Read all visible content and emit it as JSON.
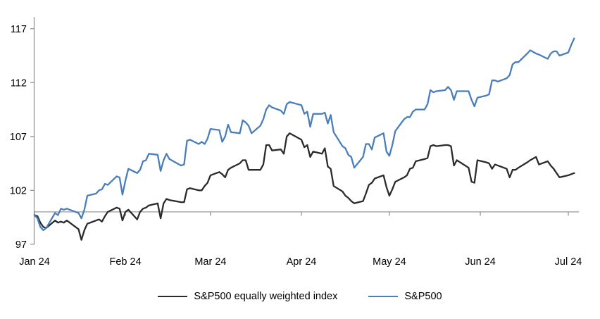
{
  "chart_data": {
    "type": "line",
    "title": "",
    "x_axis_labels": [
      {
        "label": "Jan 24",
        "date": "2024-01-01"
      },
      {
        "label": "Feb 24",
        "date": "2024-02-01"
      },
      {
        "label": "Mar 24",
        "date": "2024-03-01"
      },
      {
        "label": "Apr 24",
        "date": "2024-04-01"
      },
      {
        "label": "May 24",
        "date": "2024-05-01"
      },
      {
        "label": "Jun 24",
        "date": "2024-06-01"
      },
      {
        "label": "Jul 24",
        "date": "2024-07-01"
      }
    ],
    "y_ticks": [
      117,
      112,
      107,
      102,
      97
    ],
    "ylim": [
      97,
      117.8
    ],
    "baseline_value": 100,
    "grid": false,
    "legend_position": "bottom",
    "axis_color": "#8c8c8c",
    "baseline_color": "#9a9a9a",
    "series": [
      {
        "name": "S&P500 equally weighted index",
        "color": "#2b2b2b",
        "points": [
          [
            "2024-01-01",
            99.7
          ],
          [
            "2024-01-02",
            99.6
          ],
          [
            "2024-01-03",
            99.0
          ],
          [
            "2024-01-04",
            98.6
          ],
          [
            "2024-01-05",
            98.5
          ],
          [
            "2024-01-08",
            99.2
          ],
          [
            "2024-01-09",
            99.0
          ],
          [
            "2024-01-10",
            99.1
          ],
          [
            "2024-01-11",
            99.0
          ],
          [
            "2024-01-12",
            99.2
          ],
          [
            "2024-01-16",
            98.4
          ],
          [
            "2024-01-17",
            97.4
          ],
          [
            "2024-01-18",
            98.3
          ],
          [
            "2024-01-19",
            98.9
          ],
          [
            "2024-01-22",
            99.2
          ],
          [
            "2024-01-23",
            99.3
          ],
          [
            "2024-01-24",
            99.1
          ],
          [
            "2024-01-25",
            99.6
          ],
          [
            "2024-01-26",
            100.0
          ],
          [
            "2024-01-29",
            100.4
          ],
          [
            "2024-01-30",
            100.3
          ],
          [
            "2024-01-31",
            99.2
          ],
          [
            "2024-02-01",
            100.0
          ],
          [
            "2024-02-02",
            100.2
          ],
          [
            "2024-02-05",
            99.3
          ],
          [
            "2024-02-06",
            100.0
          ],
          [
            "2024-02-07",
            100.3
          ],
          [
            "2024-02-08",
            100.4
          ],
          [
            "2024-02-09",
            100.6
          ],
          [
            "2024-02-12",
            100.8
          ],
          [
            "2024-02-13",
            99.4
          ],
          [
            "2024-02-14",
            100.8
          ],
          [
            "2024-02-15",
            101.2
          ],
          [
            "2024-02-16",
            101.1
          ],
          [
            "2024-02-20",
            100.9
          ],
          [
            "2024-02-21",
            100.9
          ],
          [
            "2024-02-22",
            102.1
          ],
          [
            "2024-02-23",
            102.2
          ],
          [
            "2024-02-26",
            102.0
          ],
          [
            "2024-02-27",
            102.0
          ],
          [
            "2024-02-28",
            102.4
          ],
          [
            "2024-02-29",
            102.7
          ],
          [
            "2024-03-01",
            103.4
          ],
          [
            "2024-03-04",
            103.7
          ],
          [
            "2024-03-05",
            103.5
          ],
          [
            "2024-03-06",
            103.2
          ],
          [
            "2024-03-07",
            103.9
          ],
          [
            "2024-03-08",
            104.1
          ],
          [
            "2024-03-11",
            104.5
          ],
          [
            "2024-03-12",
            104.8
          ],
          [
            "2024-03-13",
            104.8
          ],
          [
            "2024-03-14",
            103.9
          ],
          [
            "2024-03-15",
            103.9
          ],
          [
            "2024-03-18",
            103.9
          ],
          [
            "2024-03-19",
            104.4
          ],
          [
            "2024-03-20",
            106.2
          ],
          [
            "2024-03-21",
            106.2
          ],
          [
            "2024-03-22",
            105.7
          ],
          [
            "2024-03-25",
            105.8
          ],
          [
            "2024-03-26",
            105.4
          ],
          [
            "2024-03-27",
            107.0
          ],
          [
            "2024-03-28",
            107.3
          ],
          [
            "2024-04-01",
            106.7
          ],
          [
            "2024-04-02",
            106.0
          ],
          [
            "2024-04-03",
            106.2
          ],
          [
            "2024-04-04",
            105.1
          ],
          [
            "2024-04-05",
            105.6
          ],
          [
            "2024-04-08",
            105.4
          ],
          [
            "2024-04-09",
            105.9
          ],
          [
            "2024-04-10",
            104.2
          ],
          [
            "2024-04-11",
            104.0
          ],
          [
            "2024-04-12",
            102.4
          ],
          [
            "2024-04-15",
            101.9
          ],
          [
            "2024-04-16",
            101.5
          ],
          [
            "2024-04-17",
            101.3
          ],
          [
            "2024-04-18",
            101.0
          ],
          [
            "2024-04-19",
            100.8
          ],
          [
            "2024-04-22",
            101.0
          ],
          [
            "2024-04-23",
            101.7
          ],
          [
            "2024-04-24",
            102.5
          ],
          [
            "2024-04-25",
            102.7
          ],
          [
            "2024-04-26",
            103.1
          ],
          [
            "2024-04-29",
            103.4
          ],
          [
            "2024-04-30",
            102.3
          ],
          [
            "2024-05-01",
            101.5
          ],
          [
            "2024-05-02",
            102.1
          ],
          [
            "2024-05-03",
            102.8
          ],
          [
            "2024-05-06",
            103.2
          ],
          [
            "2024-05-07",
            103.4
          ],
          [
            "2024-05-08",
            104.0
          ],
          [
            "2024-05-09",
            104.1
          ],
          [
            "2024-05-10",
            104.7
          ],
          [
            "2024-05-13",
            104.9
          ],
          [
            "2024-05-14",
            105.0
          ],
          [
            "2024-05-15",
            106.1
          ],
          [
            "2024-05-16",
            106.2
          ],
          [
            "2024-05-17",
            106.1
          ],
          [
            "2024-05-20",
            106.2
          ],
          [
            "2024-05-21",
            106.2
          ],
          [
            "2024-05-22",
            106.1
          ],
          [
            "2024-05-23",
            104.3
          ],
          [
            "2024-05-24",
            104.8
          ],
          [
            "2024-05-28",
            104.1
          ],
          [
            "2024-05-29",
            102.8
          ],
          [
            "2024-05-30",
            102.7
          ],
          [
            "2024-05-31",
            104.8
          ],
          [
            "2024-06-03",
            104.6
          ],
          [
            "2024-06-04",
            104.5
          ],
          [
            "2024-06-05",
            104.0
          ],
          [
            "2024-06-06",
            104.4
          ],
          [
            "2024-06-07",
            104.3
          ],
          [
            "2024-06-10",
            104.0
          ],
          [
            "2024-06-11",
            103.2
          ],
          [
            "2024-06-12",
            103.9
          ],
          [
            "2024-06-13",
            103.9
          ],
          [
            "2024-06-14",
            104.1
          ],
          [
            "2024-06-17",
            104.6
          ],
          [
            "2024-06-18",
            104.8
          ],
          [
            "2024-06-20",
            105.1
          ],
          [
            "2024-06-21",
            104.4
          ],
          [
            "2024-06-24",
            104.7
          ],
          [
            "2024-06-25",
            104.3
          ],
          [
            "2024-06-26",
            104.0
          ],
          [
            "2024-06-27",
            103.6
          ],
          [
            "2024-06-28",
            103.2
          ],
          [
            "2024-07-01",
            103.4
          ],
          [
            "2024-07-02",
            103.5
          ],
          [
            "2024-07-03",
            103.6
          ]
        ]
      },
      {
        "name": "S&P500",
        "color": "#4a7ebb",
        "points": [
          [
            "2024-01-01",
            99.7
          ],
          [
            "2024-01-02",
            99.4
          ],
          [
            "2024-01-03",
            98.6
          ],
          [
            "2024-01-04",
            98.3
          ],
          [
            "2024-01-05",
            98.5
          ],
          [
            "2024-01-08",
            99.9
          ],
          [
            "2024-01-09",
            99.7
          ],
          [
            "2024-01-10",
            100.3
          ],
          [
            "2024-01-11",
            100.2
          ],
          [
            "2024-01-12",
            100.3
          ],
          [
            "2024-01-16",
            99.9
          ],
          [
            "2024-01-17",
            99.4
          ],
          [
            "2024-01-18",
            100.2
          ],
          [
            "2024-01-19",
            101.5
          ],
          [
            "2024-01-22",
            101.7
          ],
          [
            "2024-01-23",
            102.0
          ],
          [
            "2024-01-24",
            102.1
          ],
          [
            "2024-01-25",
            102.6
          ],
          [
            "2024-01-26",
            102.5
          ],
          [
            "2024-01-29",
            103.3
          ],
          [
            "2024-01-30",
            103.2
          ],
          [
            "2024-01-31",
            101.6
          ],
          [
            "2024-02-01",
            102.9
          ],
          [
            "2024-02-02",
            104.0
          ],
          [
            "2024-02-05",
            103.6
          ],
          [
            "2024-02-06",
            103.9
          ],
          [
            "2024-02-07",
            104.7
          ],
          [
            "2024-02-08",
            104.8
          ],
          [
            "2024-02-09",
            105.4
          ],
          [
            "2024-02-12",
            105.3
          ],
          [
            "2024-02-13",
            103.8
          ],
          [
            "2024-02-14",
            104.8
          ],
          [
            "2024-02-15",
            105.4
          ],
          [
            "2024-02-16",
            104.9
          ],
          [
            "2024-02-20",
            104.3
          ],
          [
            "2024-02-21",
            104.4
          ],
          [
            "2024-02-22",
            106.6
          ],
          [
            "2024-02-23",
            106.7
          ],
          [
            "2024-02-26",
            106.3
          ],
          [
            "2024-02-27",
            106.5
          ],
          [
            "2024-02-28",
            106.3
          ],
          [
            "2024-02-29",
            106.8
          ],
          [
            "2024-03-01",
            107.7
          ],
          [
            "2024-03-04",
            107.6
          ],
          [
            "2024-03-05",
            106.5
          ],
          [
            "2024-03-06",
            107.0
          ],
          [
            "2024-03-07",
            108.1
          ],
          [
            "2024-03-08",
            107.4
          ],
          [
            "2024-03-11",
            107.3
          ],
          [
            "2024-03-12",
            108.5
          ],
          [
            "2024-03-13",
            108.3
          ],
          [
            "2024-03-14",
            108.0
          ],
          [
            "2024-03-15",
            107.3
          ],
          [
            "2024-03-18",
            108.0
          ],
          [
            "2024-03-19",
            108.6
          ],
          [
            "2024-03-20",
            109.5
          ],
          [
            "2024-03-21",
            109.9
          ],
          [
            "2024-03-22",
            109.7
          ],
          [
            "2024-03-25",
            109.4
          ],
          [
            "2024-03-26",
            109.1
          ],
          [
            "2024-03-27",
            110.0
          ],
          [
            "2024-03-28",
            110.2
          ],
          [
            "2024-04-01",
            109.9
          ],
          [
            "2024-04-02",
            109.1
          ],
          [
            "2024-04-03",
            109.3
          ],
          [
            "2024-04-04",
            107.9
          ],
          [
            "2024-04-05",
            109.1
          ],
          [
            "2024-04-08",
            109.1
          ],
          [
            "2024-04-09",
            109.2
          ],
          [
            "2024-04-10",
            108.2
          ],
          [
            "2024-04-11",
            109.0
          ],
          [
            "2024-04-12",
            107.4
          ],
          [
            "2024-04-15",
            106.1
          ],
          [
            "2024-04-16",
            105.9
          ],
          [
            "2024-04-17",
            105.3
          ],
          [
            "2024-04-18",
            105.1
          ],
          [
            "2024-04-19",
            104.1
          ],
          [
            "2024-04-22",
            105.1
          ],
          [
            "2024-04-23",
            106.3
          ],
          [
            "2024-04-24",
            106.3
          ],
          [
            "2024-04-25",
            105.8
          ],
          [
            "2024-04-26",
            106.9
          ],
          [
            "2024-04-29",
            107.3
          ],
          [
            "2024-04-30",
            105.6
          ],
          [
            "2024-05-01",
            105.2
          ],
          [
            "2024-05-02",
            106.2
          ],
          [
            "2024-05-03",
            107.5
          ],
          [
            "2024-05-06",
            108.6
          ],
          [
            "2024-05-07",
            108.8
          ],
          [
            "2024-05-08",
            108.8
          ],
          [
            "2024-05-09",
            109.3
          ],
          [
            "2024-05-10",
            109.5
          ],
          [
            "2024-05-13",
            109.5
          ],
          [
            "2024-05-14",
            110.0
          ],
          [
            "2024-05-15",
            111.3
          ],
          [
            "2024-05-16",
            111.1
          ],
          [
            "2024-05-17",
            111.2
          ],
          [
            "2024-05-20",
            111.3
          ],
          [
            "2024-05-21",
            111.6
          ],
          [
            "2024-05-22",
            111.3
          ],
          [
            "2024-05-23",
            110.4
          ],
          [
            "2024-05-24",
            111.2
          ],
          [
            "2024-05-28",
            111.2
          ],
          [
            "2024-05-29",
            110.4
          ],
          [
            "2024-05-30",
            109.8
          ],
          [
            "2024-05-31",
            110.6
          ],
          [
            "2024-06-03",
            110.8
          ],
          [
            "2024-06-04",
            110.9
          ],
          [
            "2024-06-05",
            112.2
          ],
          [
            "2024-06-06",
            112.2
          ],
          [
            "2024-06-07",
            112.1
          ],
          [
            "2024-06-10",
            112.4
          ],
          [
            "2024-06-11",
            112.7
          ],
          [
            "2024-06-12",
            113.7
          ],
          [
            "2024-06-13",
            113.9
          ],
          [
            "2024-06-14",
            113.9
          ],
          [
            "2024-06-17",
            114.7
          ],
          [
            "2024-06-18",
            115.0
          ],
          [
            "2024-06-20",
            114.7
          ],
          [
            "2024-06-21",
            114.6
          ],
          [
            "2024-06-24",
            114.2
          ],
          [
            "2024-06-25",
            114.7
          ],
          [
            "2024-06-26",
            114.9
          ],
          [
            "2024-06-27",
            114.9
          ],
          [
            "2024-06-28",
            114.5
          ],
          [
            "2024-07-01",
            114.8
          ],
          [
            "2024-07-02",
            115.5
          ],
          [
            "2024-07-03",
            116.1
          ]
        ]
      }
    ]
  }
}
